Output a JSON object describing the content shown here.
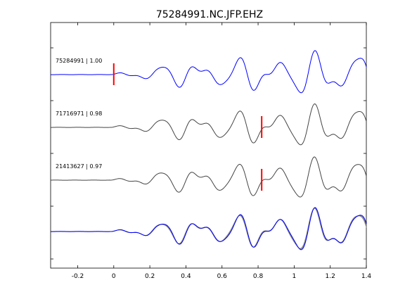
{
  "chart_data": {
    "type": "line",
    "title": "75284991.NC.JFP.EHZ",
    "xlabel": "",
    "ylabel": "",
    "xlim": [
      -0.35,
      1.4
    ],
    "x_ticks": [
      -0.2,
      0,
      0.2,
      0.4,
      0.6,
      0.8,
      1,
      1.2,
      1.4
    ],
    "x_tick_labels": [
      "-0.2",
      "0",
      "0.2",
      "0.4",
      "0.6",
      "0.8",
      "1",
      "1.2",
      "1.4"
    ],
    "grid": false,
    "series": [
      {
        "name": "75284991 | 1.00",
        "label": "75284991 | 1.00",
        "color": "#0000ff",
        "offset": 0,
        "scale": 1.0,
        "pick": 0.0,
        "seed": 0
      },
      {
        "name": "71716971 | 0.98",
        "label": "71716971 | 0.98",
        "color": "#444444",
        "offset": 1,
        "scale": 0.98,
        "pick": 0.82,
        "seed": 1
      },
      {
        "name": "21413627 | 0.97",
        "label": "21413627 | 0.97",
        "color": "#444444",
        "offset": 2,
        "scale": 0.97,
        "pick": 0.82,
        "seed": 2
      }
    ],
    "stack_overlay": {
      "colors": [
        "#0000ff",
        "#777777",
        "#999999"
      ]
    },
    "pick_color": "#ff0000"
  }
}
